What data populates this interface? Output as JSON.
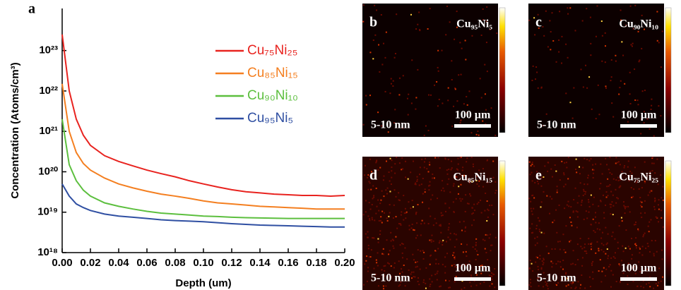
{
  "chart_data": {
    "type": "line",
    "panel_label": "a",
    "x_label": "Depth (um)",
    "y_label": "Concentration (Atoms/cm³)",
    "log_y": true,
    "x": [
      0,
      0.005,
      0.01,
      0.015,
      0.02,
      0.03,
      0.04,
      0.05,
      0.06,
      0.07,
      0.08,
      0.09,
      0.1,
      0.11,
      0.12,
      0.13,
      0.14,
      0.15,
      0.16,
      0.17,
      0.18,
      0.19,
      0.2
    ],
    "series": [
      {
        "name": "Cu₇₅Ni₂₅",
        "color": "#e8231f",
        "values": [
          2.5e+23,
          1e+22,
          2e+21,
          8e+20,
          4.5e+20,
          2.5e+20,
          1.8e+20,
          1.4e+20,
          1.1e+20,
          9e+19,
          7.5e+19,
          6e+19,
          5e+19,
          4.2e+19,
          3.6e+19,
          3.2e+19,
          3e+19,
          2.8e+19,
          2.7e+19,
          2.6e+19,
          2.6e+19,
          2.5e+19,
          2.6e+19
        ]
      },
      {
        "name": "Cu₈₅Ni₁₅",
        "color": "#f47f20",
        "values": [
          1.5e+22,
          1e+21,
          3e+20,
          1.6e+20,
          1.1e+20,
          7e+19,
          5e+19,
          4e+19,
          3.3e+19,
          2.8e+19,
          2.5e+19,
          2.2e+19,
          1.9e+19,
          1.7e+19,
          1.6e+19,
          1.5e+19,
          1.4e+19,
          1.35e+19,
          1.3e+19,
          1.25e+19,
          1.2e+19,
          1.2e+19,
          1.2e+19
        ]
      },
      {
        "name": "Cu₉₀Ni₁₀",
        "color": "#5cbf3e",
        "values": [
          2e+21,
          1.5e+20,
          6e+19,
          3.5e+19,
          2.5e+19,
          1.7e+19,
          1.4e+19,
          1.2e+19,
          1.05e+19,
          9.5e+18,
          9e+18,
          8.5e+18,
          8e+18,
          7.8e+18,
          7.5e+18,
          7.3e+18,
          7.2e+18,
          7.1e+18,
          7e+18,
          7e+18,
          7e+18,
          7e+18,
          7e+18
        ]
      },
      {
        "name": "Cu₉₅Ni₅",
        "color": "#2f4fa2",
        "values": [
          5e+19,
          2.5e+19,
          1.6e+19,
          1.3e+19,
          1.1e+19,
          9e+18,
          8e+18,
          7.5e+18,
          7e+18,
          6.5e+18,
          6.2e+18,
          6e+18,
          5.8e+18,
          5.5e+18,
          5.2e+18,
          5e+18,
          4.8e+18,
          4.7e+18,
          4.6e+18,
          4.5e+18,
          4.4e+18,
          4.3e+18,
          4.3e+18
        ]
      }
    ],
    "xlim": [
      0,
      0.2
    ],
    "xticks": [
      {
        "value": 0,
        "label": "0.00"
      },
      {
        "value": 0.02,
        "label": "0.02"
      },
      {
        "value": 0.04,
        "label": "0.04"
      },
      {
        "value": 0.06,
        "label": "0.06"
      },
      {
        "value": 0.08,
        "label": "0.08"
      },
      {
        "value": 0.1,
        "label": "0.10"
      },
      {
        "value": 0.12,
        "label": "0.12"
      },
      {
        "value": 0.14,
        "label": "0.14"
      },
      {
        "value": 0.16,
        "label": "0.16"
      },
      {
        "value": 0.18,
        "label": "0.18"
      },
      {
        "value": 0.2,
        "label": "0.20"
      }
    ],
    "ylim": [
      1e+18,
      1.1e+24
    ],
    "yticks": [
      {
        "value": 1e+18,
        "label": "10¹⁸"
      },
      {
        "value": 1e+19,
        "label": "10¹⁹"
      },
      {
        "value": 1e+20,
        "label": "10²⁰"
      },
      {
        "value": 1e+21,
        "label": "10²¹"
      },
      {
        "value": 1e+22,
        "label": "10²²"
      },
      {
        "value": 1e+23,
        "label": "10²³"
      }
    ],
    "legend": "upper right"
  },
  "panels": [
    {
      "letter": "b",
      "composition": "Cu₉₅Ni₅",
      "scale": "100 µm",
      "depth": "5-10 nm"
    },
    {
      "letter": "c",
      "composition": "Cu₉₀Ni₁₀",
      "scale": "100 µm",
      "depth": "5-10 nm"
    },
    {
      "letter": "d",
      "composition": "Cu₈₅Ni₁₅",
      "scale": "100 µm",
      "depth": "5-10 nm"
    },
    {
      "letter": "e",
      "composition": "Cu₇₅Ni₂₅",
      "scale": "100 µm",
      "depth": "5-10 nm"
    }
  ]
}
